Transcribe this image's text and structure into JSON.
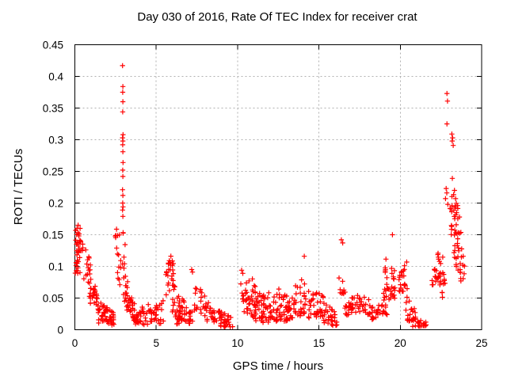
{
  "page": {
    "background": "#ffffff"
  },
  "chart_data": {
    "type": "scatter",
    "title": "Day 030 of 2016, Rate Of TEC Index for receiver crat",
    "xlabel": "GPS time / hours",
    "ylabel": "ROTI / TECUs",
    "xlim": [
      0,
      25
    ],
    "ylim": [
      0,
      0.45
    ],
    "xticks": [
      0,
      5,
      10,
      15,
      20,
      25
    ],
    "xtick_labels": [
      "0",
      "5",
      "10",
      "15",
      "20",
      "25"
    ],
    "yticks": [
      0,
      0.05,
      0.1,
      0.15,
      0.2,
      0.25,
      0.3,
      0.35,
      0.4,
      0.45
    ],
    "ytick_labels": [
      "0",
      "0.05",
      "0.1",
      "0.15",
      "0.2",
      "0.25",
      "0.3",
      "0.35",
      "0.4",
      "0.45"
    ],
    "grid": true,
    "legend": "none",
    "marker": "plus",
    "marker_color": "#ff0000",
    "frame_color": "#000000",
    "grid_color": "#b0b0b0",
    "seed": 7,
    "outlier_points": [
      [
        2.93,
        0.417
      ],
      [
        2.95,
        0.384
      ],
      [
        2.94,
        0.375
      ],
      [
        2.95,
        0.36
      ],
      [
        2.94,
        0.344
      ],
      [
        2.96,
        0.308
      ],
      [
        2.93,
        0.303
      ],
      [
        2.95,
        0.298
      ],
      [
        2.94,
        0.292
      ],
      [
        2.95,
        0.281
      ],
      [
        2.96,
        0.264
      ],
      [
        2.94,
        0.252
      ],
      [
        2.95,
        0.242
      ],
      [
        2.93,
        0.221
      ],
      [
        2.95,
        0.212
      ],
      [
        2.94,
        0.2
      ],
      [
        2.96,
        0.194
      ],
      [
        2.93,
        0.189
      ],
      [
        2.95,
        0.179
      ],
      [
        22.87,
        0.373
      ],
      [
        22.9,
        0.361
      ],
      [
        22.87,
        0.325
      ],
      [
        23.17,
        0.309
      ],
      [
        23.22,
        0.303
      ],
      [
        23.19,
        0.298
      ],
      [
        23.25,
        0.291
      ],
      [
        23.2,
        0.239
      ],
      [
        22.82,
        0.223
      ],
      [
        22.86,
        0.216
      ],
      [
        23.33,
        0.22
      ],
      [
        23.4,
        0.207
      ],
      [
        22.78,
        0.207
      ],
      [
        22.92,
        0.198
      ],
      [
        7.18,
        0.095
      ],
      [
        7.23,
        0.091
      ],
      [
        10.25,
        0.094
      ],
      [
        10.32,
        0.089
      ],
      [
        14.1,
        0.116
      ],
      [
        16.38,
        0.142
      ],
      [
        16.46,
        0.137
      ],
      [
        19.52,
        0.15
      ],
      [
        0.2,
        0.165
      ],
      [
        0.32,
        0.16
      ]
    ],
    "clusters": [
      {
        "x0": 0.02,
        "x1": 0.38,
        "b0": 0.088,
        "b1": 0.09,
        "t0": 0.168,
        "t1": 0.148,
        "n": 26
      },
      {
        "x0": 0.05,
        "x1": 0.5,
        "b0": 0.122,
        "b1": 0.118,
        "t0": 0.148,
        "t1": 0.138,
        "n": 12,
        "bias": 1.0
      },
      {
        "x0": 0.55,
        "x1": 0.98,
        "b0": 0.08,
        "b1": 0.072,
        "t0": 0.134,
        "t1": 0.108,
        "n": 14,
        "bias": 1.2
      },
      {
        "x0": 0.85,
        "x1": 1.45,
        "b0": 0.045,
        "b1": 0.026,
        "t0": 0.102,
        "t1": 0.052,
        "n": 30,
        "bias": 1.3
      },
      {
        "x0": 1.35,
        "x1": 2.45,
        "b0": 0.01,
        "b1": 0.007,
        "t0": 0.048,
        "t1": 0.026,
        "n": 46
      },
      {
        "x0": 2.45,
        "x1": 3.1,
        "b0": 0.132,
        "b1": 0.132,
        "t0": 0.168,
        "t1": 0.16,
        "n": 9,
        "bias": 1.0
      },
      {
        "x0": 2.5,
        "x1": 3.12,
        "b0": 0.096,
        "b1": 0.096,
        "t0": 0.13,
        "t1": 0.124,
        "n": 10,
        "bias": 1.0
      },
      {
        "x0": 2.6,
        "x1": 3.3,
        "b0": 0.066,
        "b1": 0.066,
        "t0": 0.092,
        "t1": 0.086,
        "n": 10,
        "bias": 1.0
      },
      {
        "x0": 2.95,
        "x1": 3.6,
        "b0": 0.04,
        "b1": 0.028,
        "t0": 0.073,
        "t1": 0.05,
        "n": 16,
        "bias": 1.2
      },
      {
        "x0": 3.2,
        "x1": 4.05,
        "b0": 0.02,
        "b1": 0.012,
        "t0": 0.052,
        "t1": 0.036,
        "n": 22
      },
      {
        "x0": 3.55,
        "x1": 5.45,
        "b0": 0.007,
        "b1": 0.01,
        "t0": 0.034,
        "t1": 0.048,
        "n": 62
      },
      {
        "x0": 5.5,
        "x1": 5.78,
        "b0": 0.038,
        "b1": 0.05,
        "t0": 0.088,
        "t1": 0.1,
        "n": 8,
        "bias": 1.1
      },
      {
        "x0": 5.72,
        "x1": 6.15,
        "b0": 0.052,
        "b1": 0.06,
        "t0": 0.118,
        "t1": 0.123,
        "n": 20,
        "bias": 1.1
      },
      {
        "x0": 5.95,
        "x1": 6.9,
        "b0": 0.022,
        "b1": 0.012,
        "t0": 0.076,
        "t1": 0.04,
        "n": 30
      },
      {
        "x0": 6.2,
        "x1": 7.25,
        "b0": 0.009,
        "b1": 0.01,
        "t0": 0.034,
        "t1": 0.028,
        "n": 28
      },
      {
        "x0": 7.35,
        "x1": 8.15,
        "b0": 0.03,
        "b1": 0.02,
        "t0": 0.077,
        "t1": 0.053,
        "n": 26,
        "bias": 1.2
      },
      {
        "x0": 8.05,
        "x1": 8.95,
        "b0": 0.014,
        "b1": 0.009,
        "t0": 0.05,
        "t1": 0.031,
        "n": 24
      },
      {
        "x0": 8.85,
        "x1": 9.8,
        "b0": 0.005,
        "b1": 0.004,
        "t0": 0.03,
        "t1": 0.018,
        "n": 30
      },
      {
        "x0": 10.15,
        "x1": 10.6,
        "b0": 0.024,
        "b1": 0.028,
        "t0": 0.075,
        "t1": 0.08,
        "n": 14,
        "bias": 1.2
      },
      {
        "x0": 10.5,
        "x1": 11.25,
        "b0": 0.02,
        "b1": 0.02,
        "t0": 0.095,
        "t1": 0.072,
        "n": 26,
        "bias": 1.4
      },
      {
        "x0": 11.0,
        "x1": 11.6,
        "b0": 0.014,
        "b1": 0.012,
        "t0": 0.072,
        "t1": 0.055,
        "n": 30
      },
      {
        "x0": 11.55,
        "x1": 12.45,
        "b0": 0.01,
        "b1": 0.012,
        "t0": 0.058,
        "t1": 0.062,
        "n": 40
      },
      {
        "x0": 12.35,
        "x1": 13.5,
        "b0": 0.012,
        "b1": 0.015,
        "t0": 0.068,
        "t1": 0.052,
        "n": 46
      },
      {
        "x0": 13.45,
        "x1": 14.35,
        "b0": 0.022,
        "b1": 0.02,
        "t0": 0.098,
        "t1": 0.072,
        "n": 30,
        "bias": 1.3
      },
      {
        "x0": 14.35,
        "x1": 15.35,
        "b0": 0.018,
        "b1": 0.02,
        "t0": 0.064,
        "t1": 0.055,
        "n": 40
      },
      {
        "x0": 15.3,
        "x1": 16.2,
        "b0": 0.007,
        "b1": 0.006,
        "t0": 0.046,
        "t1": 0.028,
        "n": 30
      },
      {
        "x0": 16.22,
        "x1": 16.62,
        "b0": 0.054,
        "b1": 0.058,
        "t0": 0.082,
        "t1": 0.078,
        "n": 10,
        "bias": 1.0
      },
      {
        "x0": 16.6,
        "x1": 17.4,
        "b0": 0.022,
        "b1": 0.028,
        "t0": 0.052,
        "t1": 0.05,
        "n": 24
      },
      {
        "x0": 17.3,
        "x1": 18.1,
        "b0": 0.028,
        "b1": 0.022,
        "t0": 0.057,
        "t1": 0.05,
        "n": 20
      },
      {
        "x0": 18.0,
        "x1": 18.78,
        "b0": 0.013,
        "b1": 0.018,
        "t0": 0.048,
        "t1": 0.042,
        "n": 20
      },
      {
        "x0": 18.72,
        "x1": 19.2,
        "b0": 0.02,
        "b1": 0.024,
        "t0": 0.046,
        "t1": 0.05,
        "n": 12
      },
      {
        "x0": 18.78,
        "x1": 19.75,
        "b0": 0.044,
        "b1": 0.05,
        "t0": 0.062,
        "t1": 0.07,
        "n": 18,
        "bias": 1.0
      },
      {
        "x0": 19.05,
        "x1": 19.68,
        "b0": 0.06,
        "b1": 0.064,
        "t0": 0.112,
        "t1": 0.118,
        "n": 16,
        "bias": 1.1
      },
      {
        "x0": 19.9,
        "x1": 20.48,
        "b0": 0.058,
        "b1": 0.062,
        "t0": 0.108,
        "t1": 0.113,
        "n": 22,
        "bias": 1.2
      },
      {
        "x0": 20.3,
        "x1": 20.95,
        "b0": 0.016,
        "b1": 0.01,
        "t0": 0.056,
        "t1": 0.03,
        "n": 22
      },
      {
        "x0": 20.75,
        "x1": 21.6,
        "b0": 0.005,
        "b1": 0.006,
        "t0": 0.02,
        "t1": 0.013,
        "n": 22
      },
      {
        "x0": 21.95,
        "x1": 22.78,
        "b0": 0.068,
        "b1": 0.072,
        "t0": 0.098,
        "t1": 0.096,
        "n": 26,
        "bias": 1.0
      },
      {
        "x0": 22.2,
        "x1": 22.62,
        "b0": 0.103,
        "b1": 0.105,
        "t0": 0.122,
        "t1": 0.118,
        "n": 7,
        "bias": 1.0
      },
      {
        "x0": 22.5,
        "x1": 22.68,
        "b0": 0.05,
        "b1": 0.052,
        "t0": 0.062,
        "t1": 0.06,
        "n": 3,
        "bias": 1.0
      },
      {
        "x0": 23.05,
        "x1": 23.75,
        "b0": 0.146,
        "b1": 0.148,
        "t0": 0.192,
        "t1": 0.186,
        "n": 22,
        "bias": 1.0
      },
      {
        "x0": 23.15,
        "x1": 23.6,
        "b0": 0.19,
        "b1": 0.19,
        "t0": 0.225,
        "t1": 0.215,
        "n": 8,
        "bias": 1.0
      },
      {
        "x0": 23.3,
        "x1": 23.95,
        "b0": 0.108,
        "b1": 0.105,
        "t0": 0.15,
        "t1": 0.142,
        "n": 14,
        "bias": 1.0
      },
      {
        "x0": 23.35,
        "x1": 24.0,
        "b0": 0.076,
        "b1": 0.074,
        "t0": 0.108,
        "t1": 0.102,
        "n": 14,
        "bias": 1.0
      }
    ]
  }
}
